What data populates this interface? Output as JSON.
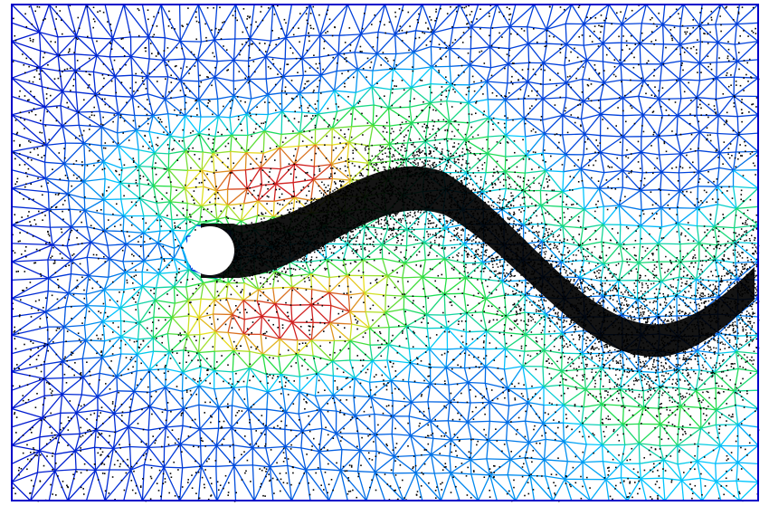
{
  "figure": {
    "description_free": true
  },
  "colors": {
    "background": "#ffffff",
    "mesh_low": "#0000c8",
    "mesh_mid_low": "#00c8ff",
    "mesh_mid": "#22dd44",
    "mesh_mid_high": "#e8e020",
    "mesh_high": "#d02020",
    "particles": "#000000",
    "cylinder": "#ffffff"
  },
  "scene": {
    "type": "flow-past-cylinder",
    "mesh": "triangular",
    "particles": "tracer-points",
    "wake": "von-karman-street"
  }
}
